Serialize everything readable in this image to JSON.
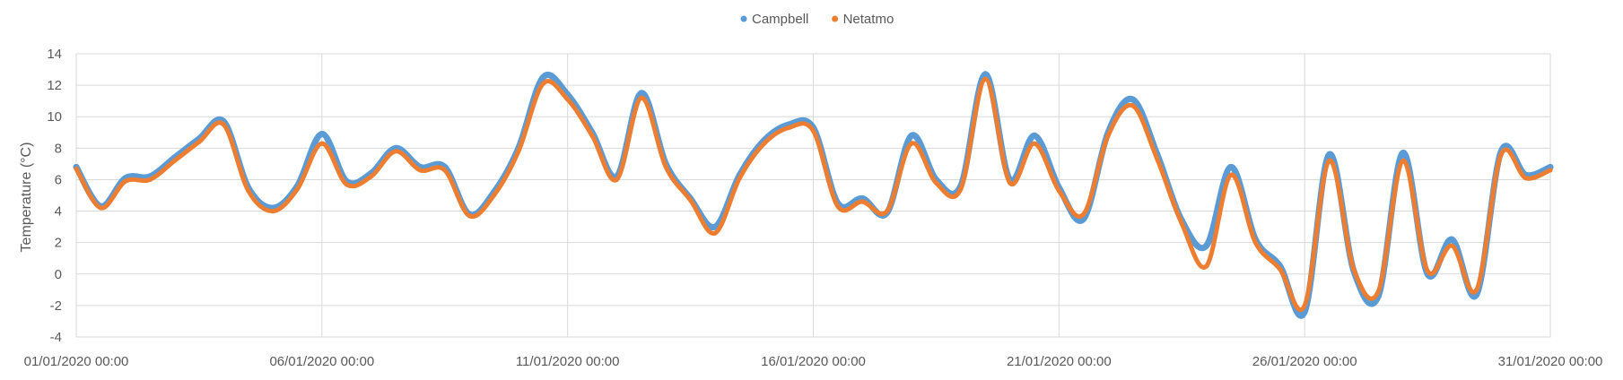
{
  "chart_data": {
    "type": "line",
    "title": "",
    "xlabel": "",
    "ylabel": "Temperature (°C)",
    "ylim": [
      -4,
      14
    ],
    "yticks": [
      -4,
      -2,
      0,
      2,
      4,
      6,
      8,
      10,
      12,
      14
    ],
    "xlim": [
      "01/01/2020 00:00",
      "31/01/2020 00:00"
    ],
    "xtick_labels": [
      "01/01/2020 00:00",
      "06/01/2020 00:00",
      "11/01/2020 00:00",
      "16/01/2020 00:00",
      "21/01/2020 00:00",
      "26/01/2020 00:00",
      "31/01/2020 00:00"
    ],
    "grid": true,
    "legend_position": "top-center",
    "x": [
      "01/01/2020 00:00",
      "01/01/2020 12:00",
      "02/01/2020 00:00",
      "02/01/2020 12:00",
      "03/01/2020 00:00",
      "03/01/2020 12:00",
      "04/01/2020 00:00",
      "04/01/2020 12:00",
      "05/01/2020 00:00",
      "05/01/2020 12:00",
      "06/01/2020 00:00",
      "06/01/2020 12:00",
      "07/01/2020 00:00",
      "07/01/2020 12:00",
      "08/01/2020 00:00",
      "08/01/2020 12:00",
      "09/01/2020 00:00",
      "09/01/2020 12:00",
      "10/01/2020 00:00",
      "10/01/2020 12:00",
      "11/01/2020 00:00",
      "11/01/2020 12:00",
      "12/01/2020 00:00",
      "12/01/2020 12:00",
      "13/01/2020 00:00",
      "13/01/2020 12:00",
      "14/01/2020 00:00",
      "14/01/2020 12:00",
      "15/01/2020 00:00",
      "15/01/2020 12:00",
      "16/01/2020 00:00",
      "16/01/2020 12:00",
      "17/01/2020 00:00",
      "17/01/2020 12:00",
      "18/01/2020 00:00",
      "18/01/2020 12:00",
      "19/01/2020 00:00",
      "19/01/2020 12:00",
      "20/01/2020 00:00",
      "20/01/2020 12:00",
      "21/01/2020 00:00",
      "21/01/2020 12:00",
      "22/01/2020 00:00",
      "22/01/2020 12:00",
      "23/01/2020 00:00",
      "23/01/2020 12:00",
      "24/01/2020 00:00",
      "24/01/2020 12:00",
      "25/01/2020 00:00",
      "25/01/2020 12:00",
      "26/01/2020 00:00",
      "26/01/2020 12:00",
      "27/01/2020 00:00",
      "27/01/2020 12:00",
      "28/01/2020 00:00",
      "28/01/2020 12:00",
      "29/01/2020 00:00",
      "29/01/2020 12:00",
      "30/01/2020 00:00",
      "30/01/2020 12:00",
      "31/01/2020 00:00"
    ],
    "series": [
      {
        "name": "Campbell",
        "color": "#5B9BD5",
        "values": [
          6.8,
          4.3,
          6.1,
          6.2,
          7.4,
          8.6,
          9.7,
          5.5,
          4.2,
          5.6,
          8.9,
          5.9,
          6.4,
          8.0,
          6.8,
          6.8,
          3.8,
          5.2,
          8.0,
          12.5,
          11.4,
          9.0,
          6.2,
          11.5,
          7.0,
          4.8,
          3.0,
          6.3,
          8.5,
          9.5,
          9.3,
          4.5,
          4.8,
          3.9,
          8.8,
          6.0,
          5.6,
          12.7,
          6.0,
          8.8,
          5.5,
          3.5,
          9.0,
          11.1,
          7.6,
          3.4,
          1.8,
          6.8,
          2.2,
          0.5,
          -2.4,
          7.6,
          0.2,
          -1.4,
          7.7,
          0.0,
          2.2,
          -1.3,
          7.8,
          6.3,
          6.8
        ],
        "note_unused": ""
      },
      {
        "name": "Netatmo",
        "color": "#ED7D31",
        "values": [
          6.7,
          4.2,
          5.9,
          6.0,
          7.2,
          8.4,
          9.5,
          5.3,
          4.0,
          5.4,
          8.3,
          5.7,
          6.2,
          7.8,
          6.6,
          6.6,
          3.7,
          5.0,
          7.8,
          12.1,
          11.1,
          8.8,
          6.0,
          11.2,
          6.8,
          4.7,
          2.6,
          6.1,
          8.3,
          9.3,
          9.1,
          4.3,
          4.6,
          4.0,
          8.3,
          5.8,
          5.4,
          12.4,
          5.8,
          8.3,
          5.3,
          3.8,
          8.8,
          10.7,
          7.3,
          3.2,
          0.5,
          6.3,
          2.0,
          0.3,
          -2.0,
          7.2,
          0.3,
          -1.1,
          7.2,
          0.2,
          1.8,
          -1.0,
          7.6,
          6.1,
          6.6
        ]
      }
    ]
  }
}
